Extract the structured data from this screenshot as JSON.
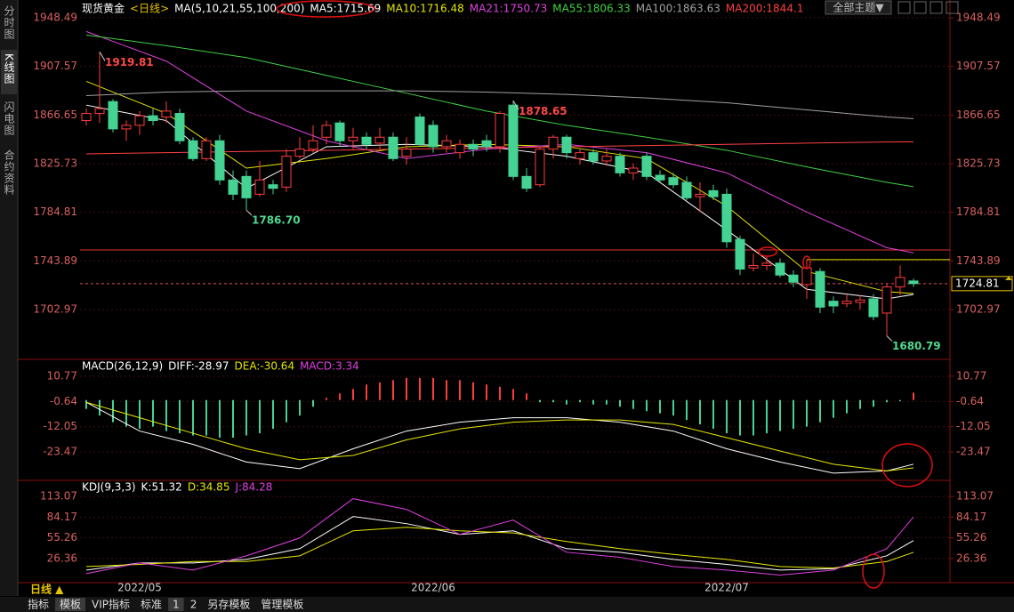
{
  "chart_data": [
    {
      "type": "candlestick",
      "title": "现货黄金",
      "subtitle": "<日线>",
      "legend_title": "MA(5,10,21,55,100,200)",
      "categories": [
        null,
        null,
        null,
        null,
        "2022/05",
        null,
        null,
        null,
        null,
        null,
        null,
        null,
        null,
        null,
        null,
        null,
        null,
        null,
        null,
        null,
        null,
        null,
        null,
        null,
        null,
        null,
        "2022/06",
        null,
        null,
        null,
        null,
        null,
        null,
        null,
        null,
        null,
        null,
        null,
        null,
        null,
        null,
        null,
        null,
        null,
        null,
        null,
        null,
        null,
        "2022/07",
        null,
        null,
        null,
        null,
        null,
        null,
        null,
        null,
        null,
        null,
        null,
        null,
        null,
        null
      ],
      "open": [
        1862,
        1868,
        1878,
        1855,
        1858,
        1866,
        1865,
        1868,
        1845,
        1830,
        1845,
        1812,
        1815,
        1800,
        1808,
        1806,
        1832,
        1838,
        1848,
        1860,
        1845,
        1848,
        1843,
        1848,
        1832,
        1865,
        1858,
        1840,
        1835,
        1842,
        1845,
        1840,
        1875,
        1815,
        1808,
        1838,
        1848,
        1830,
        1835,
        1828,
        1832,
        1818,
        1832,
        1816,
        1814,
        1810,
        1798,
        1803,
        1800,
        1762,
        1738,
        1740,
        1742,
        1732,
        1724,
        1735,
        1710,
        1708,
        1709,
        1712,
        1700,
        1722,
        1727
      ],
      "high": [
        1872,
        1919.81,
        1880,
        1862,
        1870,
        1872,
        1878,
        1872,
        1848,
        1848,
        1850,
        1820,
        1820,
        1828,
        1812,
        1838,
        1848,
        1858,
        1862,
        1862,
        1856,
        1852,
        1856,
        1852,
        1848,
        1868,
        1862,
        1850,
        1846,
        1846,
        1850,
        1870,
        1878.65,
        1822,
        1840,
        1850,
        1850,
        1838,
        1838,
        1838,
        1835,
        1826,
        1835,
        1820,
        1818,
        1815,
        1810,
        1808,
        1805,
        1765,
        1750,
        1748,
        1746,
        1736,
        1745,
        1738,
        1714,
        1716,
        1715,
        1716,
        1725,
        1740,
        1729
      ],
      "low": [
        1858,
        1860,
        1852,
        1845,
        1850,
        1858,
        1860,
        1842,
        1828,
        1828,
        1808,
        1795,
        1786.7,
        1798,
        1800,
        1802,
        1830,
        1835,
        1842,
        1840,
        1838,
        1838,
        1838,
        1828,
        1825,
        1840,
        1835,
        1835,
        1830,
        1832,
        1836,
        1835,
        1812,
        1802,
        1806,
        1830,
        1830,
        1825,
        1825,
        1824,
        1815,
        1812,
        1812,
        1810,
        1805,
        1795,
        1785,
        1795,
        1755,
        1732,
        1735,
        1736,
        1730,
        1722,
        1712,
        1700,
        1700,
        1705,
        1703,
        1694,
        1680.79,
        1715,
        1722
      ],
      "close": [
        1868,
        1872,
        1855,
        1858,
        1866,
        1862,
        1870,
        1845,
        1830,
        1845,
        1812,
        1800,
        1797,
        1812,
        1805,
        1832,
        1838,
        1845,
        1858,
        1845,
        1848,
        1842,
        1848,
        1830,
        1838,
        1842,
        1840,
        1845,
        1842,
        1838,
        1840,
        1868,
        1815,
        1805,
        1838,
        1848,
        1835,
        1835,
        1828,
        1832,
        1818,
        1822,
        1815,
        1812,
        1808,
        1797,
        1800,
        1798,
        1760,
        1737,
        1740,
        1742,
        1732,
        1726,
        1738,
        1705,
        1706,
        1710,
        1711,
        1697,
        1722,
        1730,
        1724.81
      ],
      "up_color": "#ff3c3c",
      "down_color": "#45d394",
      "series": [
        {
          "name": "MA5:1715.69",
          "color": "#ffffff",
          "x": [
            0,
            6,
            12,
            18,
            24,
            30,
            36,
            42,
            48,
            54,
            60,
            62
          ],
          "values": [
            1875,
            1862,
            1805,
            1840,
            1842,
            1840,
            1832,
            1818,
            1770,
            1720,
            1712,
            1715.69
          ]
        },
        {
          "name": "MA10:1716.48",
          "color": "#e6e600",
          "x": [
            0,
            6,
            12,
            18,
            24,
            30,
            36,
            42,
            48,
            54,
            60,
            62
          ],
          "values": [
            1895,
            1868,
            1822,
            1830,
            1840,
            1842,
            1840,
            1830,
            1790,
            1735,
            1718,
            1716.48
          ]
        },
        {
          "name": "MA21:1750.73",
          "color": "#e040e0",
          "x": [
            0,
            6,
            12,
            18,
            24,
            30,
            36,
            42,
            48,
            54,
            60,
            62
          ],
          "values": [
            1937,
            1912,
            1870,
            1845,
            1830,
            1838,
            1842,
            1835,
            1818,
            1785,
            1755,
            1750.73
          ]
        },
        {
          "name": "MA55:1806.33",
          "color": "#40d040",
          "x": [
            0,
            6,
            12,
            18,
            24,
            30,
            36,
            42,
            48,
            54,
            60,
            62
          ],
          "values": [
            1934,
            1925,
            1915,
            1900,
            1885,
            1870,
            1858,
            1848,
            1837,
            1823,
            1810,
            1806.33
          ]
        },
        {
          "name": "MA100:1863.63",
          "color": "#a0a0a0",
          "x": [
            0,
            6,
            12,
            18,
            24,
            30,
            36,
            42,
            48,
            54,
            60,
            62
          ],
          "values": [
            1883,
            1886,
            1887,
            1887,
            1887,
            1886,
            1884,
            1881,
            1877,
            1871,
            1865,
            1863.63
          ]
        },
        {
          "name": "MA200:1844.1",
          "color": "#ff4040",
          "x": [
            0,
            6,
            12,
            18,
            24,
            30,
            36,
            42,
            48,
            54,
            60,
            62
          ],
          "values": [
            1834,
            1835,
            1836,
            1837,
            1838,
            1839,
            1840,
            1841,
            1842,
            1843,
            1844,
            1844.1
          ]
        }
      ],
      "annotations": [
        {
          "index": 1,
          "label": "1919.81",
          "color": "#ff4848"
        },
        {
          "index": 12,
          "label": "1786.70",
          "color": "#50d890"
        },
        {
          "index": 32,
          "label": "1878.65",
          "color": "#ff4848"
        },
        {
          "index": 60,
          "label": "1680.79",
          "color": "#50d890"
        }
      ],
      "hlines": [
        {
          "value": 1753.1,
          "color": "#e03030",
          "from": 0
        },
        {
          "value": 1745.0,
          "color": "#e6e600",
          "from": 54
        }
      ],
      "last_price": 1724.81,
      "ylim": [
        1664.05,
        1948.49
      ],
      "yticks": [
        1948.49,
        1907.57,
        1866.65,
        1825.73,
        1784.81,
        1743.89,
        1702.97
      ]
    },
    {
      "type": "macd",
      "title": "MACD(26,12,9)",
      "bar_name": "MACD:3.34",
      "bar_name_color": "#e040e0",
      "up_color": "#ff3c3c",
      "down_color": "#45d394",
      "values": [
        -4,
        -7,
        -10,
        -12,
        -13,
        -12,
        -14,
        -15,
        -16,
        -16,
        -17,
        -17,
        -16,
        -15,
        -13,
        -10,
        -7,
        -3,
        1,
        3,
        5,
        7,
        8,
        9,
        10,
        10,
        10,
        9,
        9,
        8,
        7,
        6,
        5,
        3,
        -1,
        -1,
        -2,
        -1,
        -2,
        -2,
        -3,
        -4,
        -5,
        -6,
        -7,
        -9,
        -11,
        -13,
        -15,
        -16,
        -16,
        -15,
        -14,
        -13,
        -12,
        -10,
        -8,
        -6,
        -4,
        -3,
        -1,
        -0.5,
        3.34
      ],
      "series": [
        {
          "name": "DIFF:-28.97",
          "color": "#ffffff",
          "x": [
            0,
            4,
            8,
            12,
            16,
            20,
            24,
            28,
            32,
            36,
            40,
            44,
            48,
            52,
            56,
            60,
            62
          ],
          "values": [
            -1,
            -14,
            -20,
            -28,
            -31,
            -22,
            -14,
            -10,
            -8,
            -8,
            -10,
            -14,
            -22,
            -28,
            -33,
            -32,
            -28.97
          ]
        },
        {
          "name": "DEA:-30.64",
          "color": "#e6e600",
          "x": [
            0,
            4,
            8,
            12,
            16,
            20,
            24,
            28,
            32,
            36,
            40,
            44,
            48,
            52,
            56,
            60,
            62
          ],
          "values": [
            -1,
            -8,
            -15,
            -22,
            -27,
            -25,
            -18,
            -13,
            -10,
            -9,
            -9,
            -11,
            -17,
            -23,
            -29,
            -32,
            -30.64
          ]
        }
      ],
      "ylim": [
        -35.07,
        15.97
      ],
      "yticks": [
        10.77,
        -0.64,
        -12.05,
        -23.47
      ]
    },
    {
      "type": "line",
      "title": "KDJ(9,3,3)",
      "series": [
        {
          "name": "K:51.32",
          "color": "#ffffff",
          "x": [
            0,
            4,
            8,
            12,
            16,
            20,
            24,
            28,
            32,
            36,
            40,
            44,
            48,
            52,
            56,
            60,
            62
          ],
          "values": [
            10,
            20,
            20,
            25,
            40,
            85,
            75,
            60,
            65,
            40,
            35,
            25,
            18,
            10,
            12,
            30,
            51.32
          ]
        },
        {
          "name": "D:34.85",
          "color": "#e6e600",
          "x": [
            0,
            4,
            8,
            12,
            16,
            20,
            24,
            28,
            32,
            36,
            40,
            44,
            48,
            52,
            56,
            60,
            62
          ],
          "values": [
            15,
            18,
            22,
            22,
            30,
            65,
            70,
            65,
            62,
            50,
            40,
            32,
            25,
            15,
            13,
            22,
            34.85
          ]
        },
        {
          "name": "J:84.28",
          "color": "#e040e0",
          "x": [
            0,
            4,
            8,
            12,
            16,
            20,
            24,
            28,
            32,
            36,
            40,
            44,
            48,
            52,
            56,
            60,
            62
          ],
          "values": [
            5,
            20,
            10,
            30,
            55,
            110,
            95,
            60,
            80,
            35,
            28,
            15,
            10,
            3,
            10,
            40,
            84.28
          ]
        }
      ],
      "ylim": [
        -7.56,
        129.4
      ],
      "yticks": [
        113.07,
        84.17,
        55.26,
        26.36
      ]
    }
  ],
  "ui": {
    "sidebar_tabs": [
      "分时图",
      "K线图",
      "闪电图",
      "合约资料"
    ],
    "theme_menu": "全部主题▼",
    "period": "日线 ▲",
    "bottom_tabs": [
      "指标",
      "模板",
      "VIP指标",
      "标准",
      "1",
      "2",
      "另存模板",
      "管理模板"
    ]
  }
}
